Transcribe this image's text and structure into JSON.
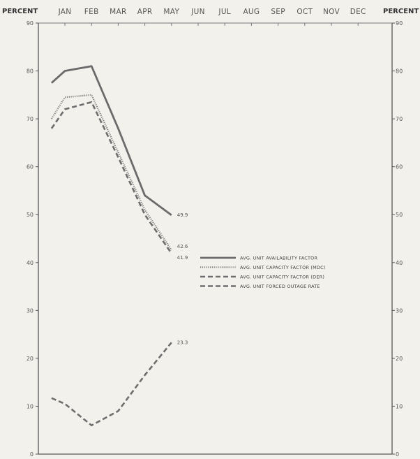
{
  "chart_data": {
    "type": "line",
    "y_axis_title_left": "PERCENT",
    "y_axis_title_right": "PERCENT",
    "categories": [
      "JAN",
      "FEB",
      "MAR",
      "APR",
      "MAY",
      "JUN",
      "JUL",
      "AUG",
      "SEP",
      "OCT",
      "NOV",
      "DEC"
    ],
    "ylim": [
      0,
      90
    ],
    "yticks": [
      0,
      10,
      20,
      30,
      40,
      50,
      60,
      70,
      80,
      90
    ],
    "grid": false,
    "legend_position": "center-right",
    "series": [
      {
        "name": "AVG. UNIT AVAILABILITY FACTOR",
        "style": "solid",
        "color": "#6b6b6b",
        "x": [
          -0.5,
          0,
          1,
          2,
          3,
          4
        ],
        "values": [
          77.5,
          80,
          81,
          68,
          54,
          49.9
        ],
        "end_label": "49.9"
      },
      {
        "name": "AVG. UNIT CAPACITY FACTOR (MDC)",
        "style": "dotted",
        "color": "#7a7a7a",
        "x": [
          -0.5,
          0,
          1,
          2,
          3,
          4
        ],
        "values": [
          70,
          74.5,
          75,
          63,
          51,
          42.6
        ],
        "end_label": "42.6"
      },
      {
        "name": "AVG. UNIT CAPACITY FACTOR (DER)",
        "style": "dashed",
        "color": "#6e6e6e",
        "x": [
          -0.5,
          0,
          1,
          2,
          3,
          4
        ],
        "values": [
          68,
          72,
          73.5,
          62,
          50,
          41.9
        ],
        "end_label": "41.9"
      },
      {
        "name": "AVG. UNIT FORCED OUTAGE RATE",
        "style": "dashed",
        "color": "#6e6e6e",
        "x": [
          -0.5,
          0,
          1,
          2,
          3,
          4
        ],
        "values": [
          11.7,
          10.5,
          6,
          9,
          16.5,
          23.3
        ],
        "end_label": "23.3"
      }
    ]
  }
}
